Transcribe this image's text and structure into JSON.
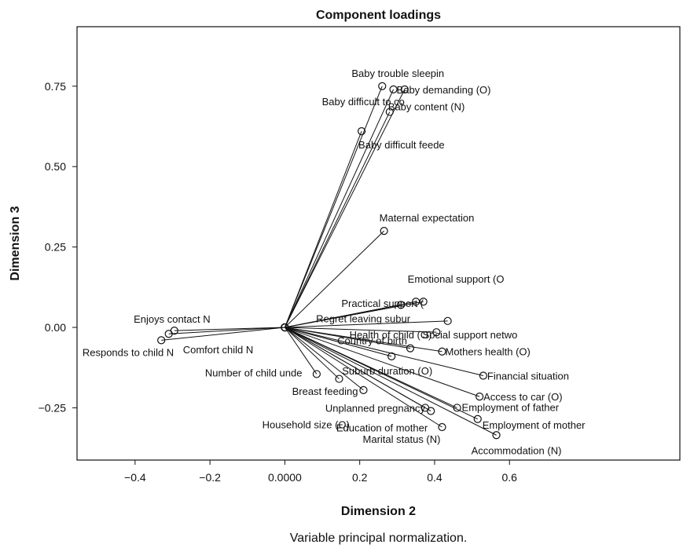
{
  "chart_data": {
    "type": "scatter",
    "title": "Component loadings",
    "xlabel": "Dimension 2",
    "ylabel": "Dimension 3",
    "caption": "Variable principal normalization.",
    "xlim": [
      -0.555,
      1.055
    ],
    "ylim": [
      -0.4125,
      0.935
    ],
    "xticks": [
      -0.4,
      -0.2,
      0.0,
      0.2,
      0.4,
      0.6
    ],
    "xtick_labels": [
      "−0.4",
      "−0.2",
      "0.0000",
      "0.2",
      "0.4",
      "0.6"
    ],
    "yticks": [
      -0.25,
      0.0,
      0.25,
      0.5,
      0.75
    ],
    "ytick_labels": [
      "−0.25",
      "0.00",
      "0.25",
      "0.50",
      "0.75"
    ],
    "grid": false,
    "origin": [
      0.0,
      0.0
    ],
    "points": [
      {
        "label": "Baby trouble sleepin",
        "x": 0.26,
        "y": 0.75,
        "anchor": "middle",
        "dx": 20,
        "dy": -12
      },
      {
        "label": "Baby demanding (O)",
        "x": 0.29,
        "y": 0.74,
        "anchor": "start",
        "dx": 4,
        "dy": 5
      },
      {
        "label": "Baby difficult to co",
        "x": 0.32,
        "y": 0.74,
        "anchor": "end",
        "dx": 0,
        "dy": 20
      },
      {
        "label": "Baby content (N)",
        "x": 0.28,
        "y": 0.67,
        "anchor": "start",
        "dx": -2,
        "dy": -2
      },
      {
        "label": "Baby difficult feede",
        "x": 0.205,
        "y": 0.61,
        "anchor": "start",
        "dx": -4,
        "dy": 22
      },
      {
        "label": "Maternal expectation",
        "x": 0.265,
        "y": 0.3,
        "anchor": "start",
        "dx": -6,
        "dy": -12
      },
      {
        "label": "Emotional support (O",
        "x": 0.37,
        "y": 0.08,
        "anchor": "start",
        "dx": -20,
        "dy": -24
      },
      {
        "label": "Practical support (",
        "x": 0.35,
        "y": 0.08,
        "anchor": "end",
        "dx": 10,
        "dy": 7
      },
      {
        "label": "Regret leaving subur",
        "x": 0.31,
        "y": 0.07,
        "anchor": "end",
        "dx": 12,
        "dy": 22
      },
      {
        "label": "Social support netwo",
        "x": 0.435,
        "y": 0.02,
        "anchor": "start",
        "dx": -32,
        "dy": 22
      },
      {
        "label": "Health of child (O)",
        "x": 0.405,
        "y": -0.015,
        "anchor": "end",
        "dx": -6,
        "dy": 8
      },
      {
        "label": "Country of birth",
        "x": 0.335,
        "y": -0.065,
        "anchor": "end",
        "dx": -4,
        "dy": -5
      },
      {
        "label": "Mothers health (O)",
        "x": 0.42,
        "y": -0.075,
        "anchor": "start",
        "dx": 4,
        "dy": 5
      },
      {
        "label": "Suburb duration (O)",
        "x": 0.285,
        "y": -0.09,
        "anchor": "end",
        "dx": 52,
        "dy": 23
      },
      {
        "label": "Financial situation",
        "x": 0.53,
        "y": -0.15,
        "anchor": "start",
        "dx": 5,
        "dy": 5
      },
      {
        "label": "Access to car (O)",
        "x": 0.52,
        "y": -0.215,
        "anchor": "start",
        "dx": 5,
        "dy": 5
      },
      {
        "label": "Employment of father",
        "x": 0.46,
        "y": -0.25,
        "anchor": "start",
        "dx": 6,
        "dy": 4
      },
      {
        "label": "Employment of mother",
        "x": 0.515,
        "y": -0.285,
        "anchor": "start",
        "dx": 6,
        "dy": 12
      },
      {
        "label": "Accommodation (N)",
        "x": 0.565,
        "y": -0.335,
        "anchor": "start",
        "dx": -32,
        "dy": 24
      },
      {
        "label": "Education of mother",
        "x": 0.39,
        "y": -0.26,
        "anchor": "end",
        "dx": -4,
        "dy": 26
      },
      {
        "label": "Unplanned pregnancy",
        "x": 0.375,
        "y": -0.25,
        "anchor": "end",
        "dx": 0,
        "dy": 5
      },
      {
        "label": "Marital status (N)",
        "x": 0.42,
        "y": -0.31,
        "anchor": "end",
        "dx": -2,
        "dy": 20
      },
      {
        "label": "Breast feeding",
        "x": 0.21,
        "y": -0.195,
        "anchor": "end",
        "dx": -7,
        "dy": 6
      },
      {
        "label": "Number of child unde",
        "x": 0.145,
        "y": -0.16,
        "anchor": "end",
        "dx": -47,
        "dy": -3
      },
      {
        "label": "Household size (O)",
        "x": 0.085,
        "y": -0.145,
        "anchor": "end",
        "dx": 42,
        "dy": 69
      },
      {
        "label": "Enjoys contact N",
        "x": -0.295,
        "y": -0.01,
        "anchor": "middle",
        "dx": -3,
        "dy": -10
      },
      {
        "label": "Comfort child N",
        "x": -0.31,
        "y": -0.02,
        "anchor": "start",
        "dx": 18,
        "dy": 25
      },
      {
        "label": "Responds to child N",
        "x": -0.33,
        "y": -0.04,
        "anchor": "end",
        "dx": 16,
        "dy": 20
      }
    ]
  }
}
